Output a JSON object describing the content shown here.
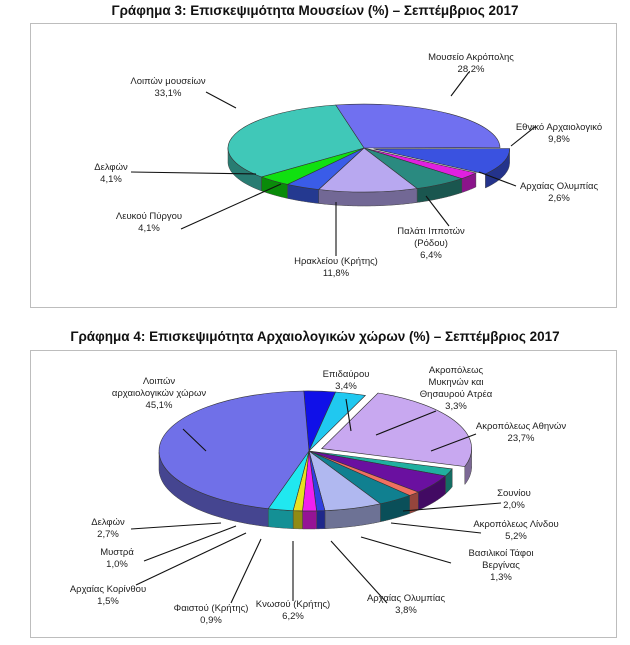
{
  "chart_data": [
    {
      "type": "pie",
      "title": "Γράφημα 3: Επισκεψιμότητα Μουσείων (%) – Σεπτέμβριος  2017",
      "slices": [
        {
          "name": "Μουσείο Ακρόπολης",
          "value": 28.2,
          "value_label": "28,2%",
          "color": "#7070f0"
        },
        {
          "name": "Εθνικό Αρχαιολογικό",
          "value": 9.8,
          "value_label": "9,8%",
          "color": "#3a52e0"
        },
        {
          "name": "Αρχαίας Ολυμπίας",
          "value": 2.6,
          "value_label": "2,6%",
          "color": "#e020e0"
        },
        {
          "name": "Παλάτι Ιπποτών (Ρόδου)",
          "value": 6.4,
          "value_label": "6,4%",
          "color": "#2a8a80"
        },
        {
          "name": "Ηρακλείου (Κρήτης)",
          "value": 11.8,
          "value_label": "11,8%",
          "color": "#b8a8f0"
        },
        {
          "name": "Λευκού Πύργου",
          "value": 4.1,
          "value_label": "4,1%",
          "color": "#3a5ce8"
        },
        {
          "name": "Δελφών",
          "value": 4.1,
          "value_label": "4,1%",
          "color": "#10e010"
        },
        {
          "name": "Λοιπών μουσείων",
          "value": 33.1,
          "value_label": "33,1%",
          "color": "#40c8b8"
        }
      ],
      "labels": [
        {
          "lines": [
            "Μουσείο Ακρόπολης",
            "28,2%"
          ]
        },
        {
          "lines": [
            "Εθνικό Αρχαιολογικό",
            "9,8%"
          ]
        },
        {
          "lines": [
            "Αρχαίας Ολυμπίας",
            "2,6%"
          ]
        },
        {
          "lines": [
            "Παλάτι Ιπποτών",
            "(Ρόδου)",
            "6,4%"
          ]
        },
        {
          "lines": [
            "Ηρακλείου (Κρήτης)",
            "11,8%"
          ]
        },
        {
          "lines": [
            "Λευκού Πύργου",
            "4,1%"
          ]
        },
        {
          "lines": [
            "Δελφών",
            "4,1%"
          ]
        },
        {
          "lines": [
            "Λοιπών μουσείων",
            "33,1%"
          ]
        }
      ]
    },
    {
      "type": "pie",
      "title": "Γράφημα 4: Επισκεψιμότητα Αρχαιολογικών χώρων (%) – Σεπτέμβριος 2017",
      "slices": [
        {
          "name": "Επιδαύρου",
          "value": 3.4,
          "value_label": "3,4%",
          "color": "#1010e8"
        },
        {
          "name": "Ακροπόλεως Μυκηνών και Θησαυρού Ατρέα",
          "value": 3.3,
          "value_label": "3,3%",
          "color": "#20c8f0"
        },
        {
          "name": "Ακροπόλεως Αθηνών",
          "value": 23.7,
          "value_label": "23,7%",
          "color": "#c8a8f0"
        },
        {
          "name": "Σουνίου",
          "value": 2.0,
          "value_label": "2,0%",
          "color": "#20b0a0"
        },
        {
          "name": "Ακροπόλεως Λίνδου",
          "value": 5.2,
          "value_label": "5,2%",
          "color": "#6a10a0"
        },
        {
          "name": "Βασιλικοί Τάφοι Βεργίνας",
          "value": 1.3,
          "value_label": "1,3%",
          "color": "#f07060"
        },
        {
          "name": "Αρχαίας Ολυμπίας",
          "value": 3.8,
          "value_label": "3,8%",
          "color": "#108090"
        },
        {
          "name": "Κνωσού (Κρήτης)",
          "value": 6.2,
          "value_label": "6,2%",
          "color": "#b0b8f0"
        },
        {
          "name": "Φαιστού (Κρήτης)",
          "value": 0.9,
          "value_label": "0,9%",
          "color": "#3040e0"
        },
        {
          "name": "Αρχαίας Κορίνθου",
          "value": 1.5,
          "value_label": "1,5%",
          "color": "#f020f0"
        },
        {
          "name": "Μυστρά",
          "value": 1.0,
          "value_label": "1,0%",
          "color": "#e8e020"
        },
        {
          "name": "Δελφών",
          "value": 2.7,
          "value_label": "2,7%",
          "color": "#20e8f0"
        },
        {
          "name": "Λοιπών αρχαιολογικών χώρων",
          "value": 45.1,
          "value_label": "45,1%",
          "color": "#7070e8"
        }
      ],
      "labels": [
        {
          "lines": [
            "Επιδαύρου",
            "3,4%"
          ]
        },
        {
          "lines": [
            "Ακροπόλεως",
            "Μυκηνών και",
            "Θησαυρού Ατρέα",
            "3,3%"
          ]
        },
        {
          "lines": [
            "Ακροπόλεως Αθηνών",
            "23,7%"
          ]
        },
        {
          "lines": [
            "Σουνίου",
            "2,0%"
          ]
        },
        {
          "lines": [
            "Ακροπόλεως Λίνδου",
            "5,2%"
          ]
        },
        {
          "lines": [
            "Βασιλικοί Τάφοι",
            "Βεργίνας",
            "1,3%"
          ]
        },
        {
          "lines": [
            "Αρχαίας Ολυμπίας",
            "3,8%"
          ]
        },
        {
          "lines": [
            "Κνωσού (Κρήτης)",
            "6,2%"
          ]
        },
        {
          "lines": [
            "Φαιστού (Κρήτης)",
            "0,9%"
          ]
        },
        {
          "lines": [
            "Αρχαίας Κορίνθου",
            "1,5%"
          ]
        },
        {
          "lines": [
            "Μυστρά",
            "1,0%"
          ]
        },
        {
          "lines": [
            "Δελφών",
            "2,7%"
          ]
        },
        {
          "lines": [
            "Λοιπών",
            "αρχαιολογικών χώρων",
            "45,1%"
          ]
        }
      ]
    }
  ]
}
